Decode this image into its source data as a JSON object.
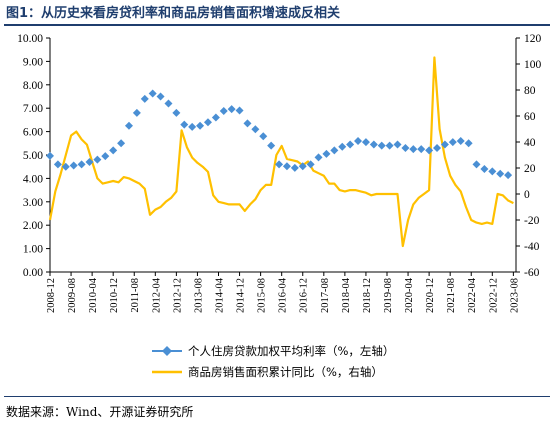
{
  "title": "图1：从历史来看房贷利率和商品房销售面积增速成反相关",
  "source": "数据来源：Wind、开源证券研究所",
  "chart_data": {
    "type": "line",
    "x_ticks": [
      "2008-12",
      "2009-08",
      "2010-04",
      "2010-12",
      "2011-08",
      "2012-04",
      "2012-12",
      "2013-08",
      "2014-04",
      "2014-12",
      "2015-08",
      "2016-04",
      "2016-12",
      "2017-08",
      "2018-04",
      "2018-12",
      "2019-08",
      "2020-04",
      "2020-12",
      "2021-08",
      "2022-04",
      "2022-12",
      "2023-08"
    ],
    "x_range": [
      "2008-12",
      "2023-09"
    ],
    "y_left": {
      "ticks": [
        "0.00",
        "1.00",
        "2.00",
        "3.00",
        "4.00",
        "5.00",
        "6.00",
        "7.00",
        "8.00",
        "9.00",
        "10.00"
      ],
      "range": [
        0,
        10
      ]
    },
    "y_right": {
      "ticks": [
        "-60",
        "-40",
        "-20",
        "0",
        "20",
        "40",
        "60",
        "80",
        "100",
        "120"
      ],
      "range": [
        -60,
        120
      ]
    },
    "legend_position": "bottom",
    "series": [
      {
        "name": "个人住房贷款加权平均利率（%，左轴）",
        "axis": "left",
        "style": "diamond-markers",
        "color": "#4a8fd4",
        "x": [
          "2008-12",
          "2009-03",
          "2009-06",
          "2009-09",
          "2009-12",
          "2010-03",
          "2010-06",
          "2010-09",
          "2010-12",
          "2011-03",
          "2011-06",
          "2011-09",
          "2011-12",
          "2012-03",
          "2012-06",
          "2012-09",
          "2012-12",
          "2013-03",
          "2013-06",
          "2013-09",
          "2013-12",
          "2014-03",
          "2014-06",
          "2014-09",
          "2014-12",
          "2015-03",
          "2015-06",
          "2015-09",
          "2015-12",
          "2016-03",
          "2016-06",
          "2016-09",
          "2016-12",
          "2017-03",
          "2017-06",
          "2017-09",
          "2017-12",
          "2018-03",
          "2018-06",
          "2018-09",
          "2018-12",
          "2019-03",
          "2019-06",
          "2019-09",
          "2019-12",
          "2020-03",
          "2020-06",
          "2020-09",
          "2020-12",
          "2021-03",
          "2021-06",
          "2021-09",
          "2021-12",
          "2022-03",
          "2022-06",
          "2022-09",
          "2022-12",
          "2023-03",
          "2023-06"
        ],
        "values": [
          4.96,
          4.6,
          4.5,
          4.55,
          4.6,
          4.7,
          4.8,
          4.95,
          5.2,
          5.5,
          6.25,
          6.8,
          7.4,
          7.63,
          7.5,
          7.2,
          6.8,
          6.3,
          6.2,
          6.25,
          6.4,
          6.6,
          6.88,
          6.96,
          6.9,
          6.35,
          6.1,
          5.8,
          5.4,
          4.6,
          4.52,
          4.45,
          4.52,
          4.6,
          4.9,
          5.05,
          5.2,
          5.35,
          5.45,
          5.6,
          5.55,
          5.45,
          5.4,
          5.4,
          5.45,
          5.3,
          5.25,
          5.25,
          5.2,
          5.3,
          5.45,
          5.55,
          5.6,
          5.5,
          4.6,
          4.4,
          4.3,
          4.2,
          4.14
        ]
      },
      {
        "name": "商品房销售面积累计同比（%，右轴）",
        "axis": "right",
        "style": "line",
        "color": "#ffc000",
        "x": [
          "2008-12",
          "2009-02",
          "2009-04",
          "2009-06",
          "2009-08",
          "2009-10",
          "2009-12",
          "2010-02",
          "2010-04",
          "2010-06",
          "2010-08",
          "2010-10",
          "2010-12",
          "2011-02",
          "2011-04",
          "2011-06",
          "2011-08",
          "2011-10",
          "2011-12",
          "2012-02",
          "2012-04",
          "2012-06",
          "2012-08",
          "2012-10",
          "2012-12",
          "2013-02",
          "2013-04",
          "2013-06",
          "2013-08",
          "2013-10",
          "2013-12",
          "2014-02",
          "2014-04",
          "2014-06",
          "2014-08",
          "2014-10",
          "2014-12",
          "2015-02",
          "2015-04",
          "2015-06",
          "2015-08",
          "2015-10",
          "2015-12",
          "2016-02",
          "2016-04",
          "2016-06",
          "2016-08",
          "2016-10",
          "2016-12",
          "2017-02",
          "2017-04",
          "2017-06",
          "2017-08",
          "2017-10",
          "2017-12",
          "2018-02",
          "2018-04",
          "2018-06",
          "2018-08",
          "2018-10",
          "2018-12",
          "2019-02",
          "2019-04",
          "2019-06",
          "2019-08",
          "2019-10",
          "2019-12",
          "2020-02",
          "2020-04",
          "2020-06",
          "2020-08",
          "2020-10",
          "2020-12",
          "2021-02",
          "2021-04",
          "2021-06",
          "2021-08",
          "2021-10",
          "2021-12",
          "2022-02",
          "2022-04",
          "2022-06",
          "2022-08",
          "2022-10",
          "2022-12",
          "2023-02",
          "2023-04",
          "2023-06",
          "2023-08"
        ],
        "values": [
          -20,
          2,
          15,
          30,
          45,
          48,
          42,
          38,
          25,
          12,
          8,
          9,
          10,
          9,
          13,
          12,
          10,
          8,
          4,
          -16,
          -12,
          -10,
          -6,
          -3,
          2,
          49,
          36,
          28,
          24,
          21,
          17,
          -1,
          -6,
          -7,
          -8,
          -8,
          -8,
          -13,
          -8,
          -4,
          3,
          7,
          7,
          30,
          37,
          27,
          26,
          25,
          22,
          25,
          18,
          16,
          14,
          8,
          8,
          3,
          2,
          3,
          3,
          2,
          1,
          -1,
          0,
          0,
          0,
          0,
          0,
          -40,
          -20,
          -8,
          -3,
          0,
          3,
          105,
          50,
          28,
          14,
          7,
          2,
          -10,
          -20,
          -22,
          -23,
          -22,
          -23,
          0,
          -1,
          -5,
          -7
        ]
      }
    ]
  }
}
